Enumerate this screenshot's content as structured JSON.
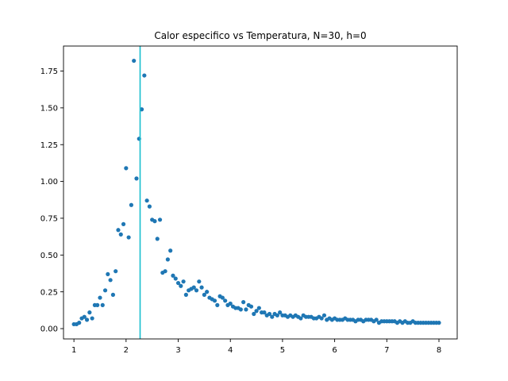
{
  "chart_data": {
    "type": "scatter",
    "title": "Calor especifico vs Temperatura, N=30, h=0",
    "xlabel": "",
    "ylabel": "",
    "xlim": [
      0.8,
      8.35
    ],
    "ylim": [
      -0.07,
      1.92
    ],
    "grid": false,
    "x_ticks": [
      1,
      2,
      3,
      4,
      5,
      6,
      7,
      8
    ],
    "x_tick_labels": [
      "1",
      "2",
      "3",
      "4",
      "5",
      "6",
      "7",
      "8"
    ],
    "y_ticks": [
      0.0,
      0.25,
      0.5,
      0.75,
      1.0,
      1.25,
      1.5,
      1.75
    ],
    "y_tick_labels": [
      "0.00",
      "0.25",
      "0.50",
      "0.75",
      "1.00",
      "1.25",
      "1.50",
      "1.75"
    ],
    "marker_color": "#1f77b4",
    "vline": {
      "x": 2.269,
      "color": "#17becf"
    },
    "series": [
      {
        "x": [
          1.0,
          1.05,
          1.1,
          1.15,
          1.2,
          1.25,
          1.3,
          1.35,
          1.4,
          1.45,
          1.5,
          1.55,
          1.6,
          1.65,
          1.7,
          1.75,
          1.8,
          1.85,
          1.9,
          1.95,
          2.0,
          2.05,
          2.1,
          2.15,
          2.2,
          2.25,
          2.3,
          2.35,
          2.4,
          2.45,
          2.5,
          2.55,
          2.6,
          2.65,
          2.7,
          2.75,
          2.8,
          2.85,
          2.9,
          2.95,
          3.0,
          3.05,
          3.1,
          3.15,
          3.2,
          3.25,
          3.3,
          3.35,
          3.4,
          3.45,
          3.5,
          3.55,
          3.6,
          3.65,
          3.7,
          3.75,
          3.8,
          3.85,
          3.9,
          3.95,
          4.0,
          4.05,
          4.1,
          4.15,
          4.2,
          4.25,
          4.3,
          4.35,
          4.4,
          4.45,
          4.5,
          4.55,
          4.6,
          4.65,
          4.7,
          4.75,
          4.8,
          4.85,
          4.9,
          4.95,
          5.0,
          5.05,
          5.1,
          5.15,
          5.2,
          5.25,
          5.3,
          5.35,
          5.4,
          5.45,
          5.5,
          5.55,
          5.6,
          5.65,
          5.7,
          5.75,
          5.8,
          5.85,
          5.9,
          5.95,
          6.0,
          6.05,
          6.1,
          6.15,
          6.2,
          6.25,
          6.3,
          6.35,
          6.4,
          6.45,
          6.5,
          6.55,
          6.6,
          6.65,
          6.7,
          6.75,
          6.8,
          6.85,
          6.9,
          6.95,
          7.0,
          7.05,
          7.1,
          7.15,
          7.2,
          7.25,
          7.3,
          7.35,
          7.4,
          7.45,
          7.5,
          7.55,
          7.6,
          7.65,
          7.7,
          7.75,
          7.8,
          7.85,
          7.9,
          7.95,
          8.0
        ],
        "y": [
          0.03,
          0.03,
          0.04,
          0.07,
          0.08,
          0.06,
          0.11,
          0.07,
          0.16,
          0.16,
          0.21,
          0.16,
          0.26,
          0.37,
          0.33,
          0.23,
          0.39,
          0.67,
          0.64,
          0.71,
          1.09,
          0.62,
          0.84,
          1.82,
          1.02,
          1.29,
          1.49,
          1.72,
          0.87,
          0.83,
          0.74,
          0.73,
          0.61,
          0.74,
          0.38,
          0.39,
          0.47,
          0.53,
          0.36,
          0.34,
          0.31,
          0.29,
          0.32,
          0.23,
          0.26,
          0.27,
          0.28,
          0.26,
          0.32,
          0.28,
          0.23,
          0.25,
          0.21,
          0.2,
          0.19,
          0.16,
          0.22,
          0.21,
          0.19,
          0.16,
          0.17,
          0.15,
          0.14,
          0.14,
          0.13,
          0.18,
          0.13,
          0.16,
          0.15,
          0.1,
          0.12,
          0.14,
          0.11,
          0.11,
          0.09,
          0.1,
          0.08,
          0.1,
          0.09,
          0.11,
          0.09,
          0.09,
          0.08,
          0.09,
          0.08,
          0.09,
          0.08,
          0.07,
          0.09,
          0.08,
          0.08,
          0.08,
          0.07,
          0.07,
          0.08,
          0.07,
          0.09,
          0.06,
          0.07,
          0.06,
          0.07,
          0.06,
          0.06,
          0.06,
          0.07,
          0.06,
          0.06,
          0.06,
          0.05,
          0.06,
          0.06,
          0.05,
          0.06,
          0.06,
          0.06,
          0.05,
          0.06,
          0.04,
          0.05,
          0.05,
          0.05,
          0.05,
          0.05,
          0.05,
          0.04,
          0.05,
          0.04,
          0.05,
          0.04,
          0.04,
          0.05,
          0.04,
          0.04,
          0.04,
          0.04,
          0.04,
          0.04,
          0.04,
          0.04,
          0.04,
          0.04
        ]
      }
    ]
  }
}
